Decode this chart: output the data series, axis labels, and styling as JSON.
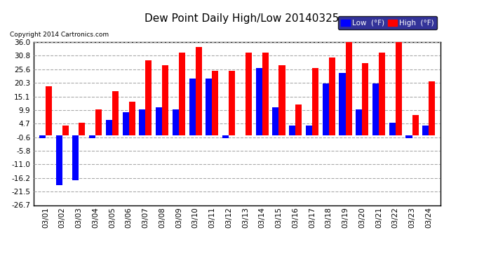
{
  "title": "Dew Point Daily High/Low 20140325",
  "copyright": "Copyright 2014 Cartronics.com",
  "dates": [
    "03/01",
    "03/02",
    "03/03",
    "03/04",
    "03/05",
    "03/06",
    "03/07",
    "03/08",
    "03/09",
    "03/10",
    "03/11",
    "03/12",
    "03/13",
    "03/14",
    "03/15",
    "03/16",
    "03/17",
    "03/18",
    "03/19",
    "03/20",
    "03/21",
    "03/22",
    "03/23",
    "03/24"
  ],
  "low": [
    -1,
    -19,
    -17,
    -1,
    6,
    9,
    10,
    11,
    10,
    22,
    22,
    -1,
    0,
    26,
    11,
    4,
    4,
    20,
    24,
    10,
    20,
    5,
    -1,
    4
  ],
  "high": [
    19,
    4,
    5,
    10,
    17,
    13,
    29,
    27,
    32,
    34,
    25,
    25,
    32,
    32,
    27,
    12,
    26,
    30,
    36,
    28,
    32,
    36,
    8,
    21
  ],
  "low_color": "#0000ff",
  "high_color": "#ff0000",
  "bg_color": "#ffffff",
  "plot_bg_color": "#ffffff",
  "grid_color": "#aaaaaa",
  "ylim_min": -26.7,
  "ylim_max": 36.0,
  "yticks": [
    36.0,
    30.8,
    25.6,
    20.3,
    15.1,
    9.9,
    4.7,
    -0.6,
    -5.8,
    -11.0,
    -16.2,
    -21.5,
    -26.7
  ],
  "bar_width": 0.38,
  "figwidth": 6.9,
  "figheight": 3.75,
  "dpi": 100
}
